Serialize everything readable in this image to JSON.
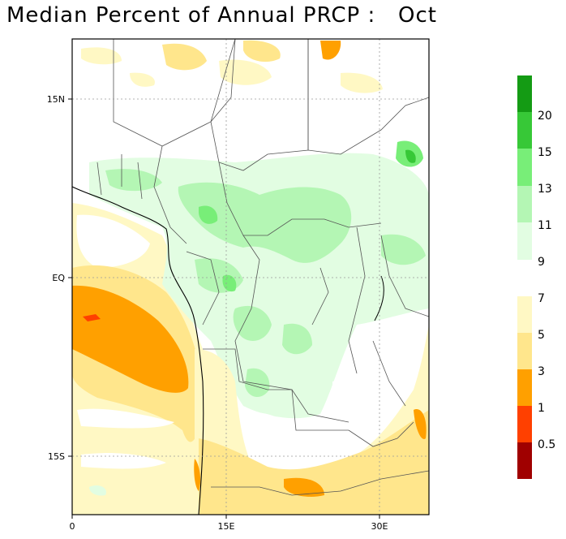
{
  "title": "Median Percent of Annual PRCP :   Oct",
  "latitude_labels": [
    "15N",
    "EQ",
    "15S"
  ],
  "longitude_labels": [
    "0",
    "15E",
    "30E"
  ],
  "colorbar": {
    "upper": {
      "colors": [
        "#149b14",
        "#37c837",
        "#78ee78",
        "#b4f6b4",
        "#e2fde2"
      ],
      "labels": [
        "20",
        "15",
        "13",
        "11",
        "9"
      ]
    },
    "lower": {
      "colors": [
        "#fff8c4",
        "#ffe68c",
        "#ffa000",
        "#ff4000",
        "#a00000"
      ],
      "labels": [
        "7",
        "5",
        "3",
        "1",
        "0.5"
      ]
    }
  },
  "palette": {
    "land_white": "#ffffff",
    "green_light": "#e2fde2",
    "green_mid": "#b4f6b4",
    "green_strong": "#78ee78",
    "green_dark": "#37c837",
    "yellow_pale": "#fff8c4",
    "yellow": "#ffe68c",
    "orange": "#ffa000",
    "red": "#ff4000",
    "gridline": "#9a9a9a",
    "border": "#555555"
  }
}
